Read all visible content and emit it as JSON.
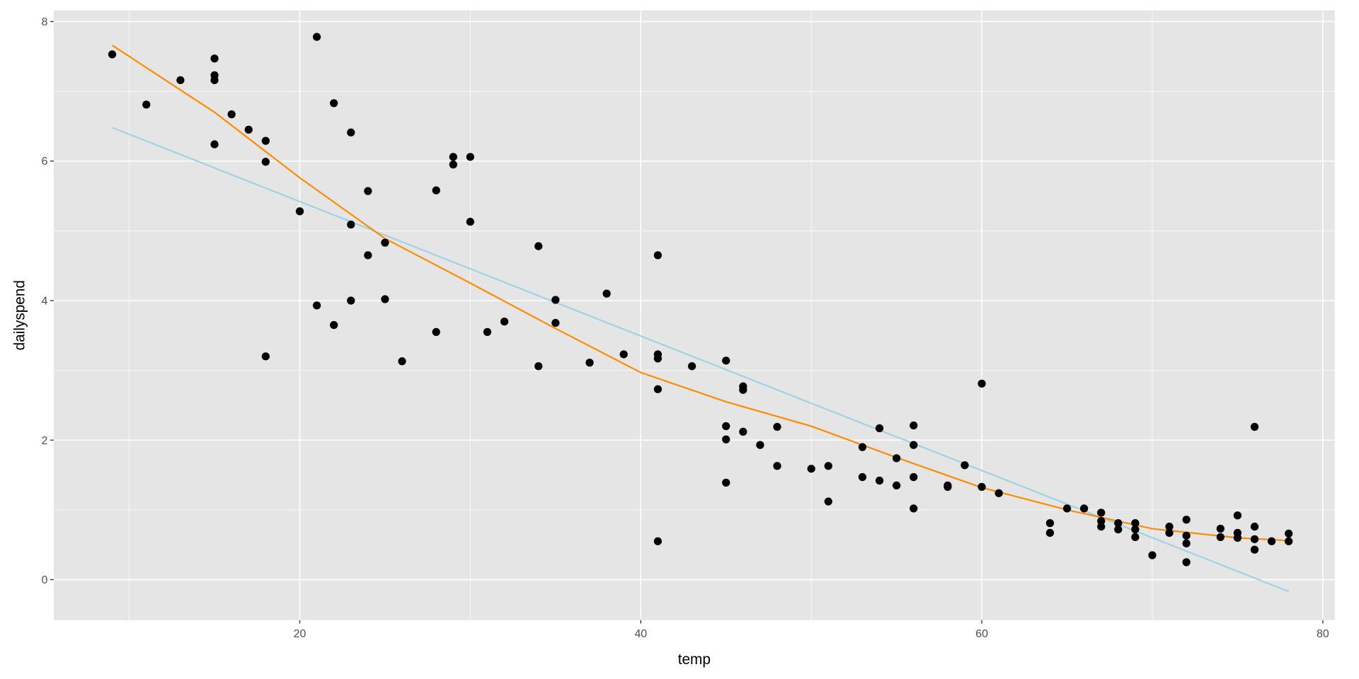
{
  "chart_data": {
    "type": "scatter",
    "title": "",
    "xlabel": "temp",
    "ylabel": "dailyspend",
    "xlim": [
      5.57,
      80.7
    ],
    "ylim": [
      -0.58,
      8.16
    ],
    "x_ticks": [
      20,
      40,
      60,
      80
    ],
    "y_ticks": [
      0,
      2,
      4,
      6,
      8
    ],
    "x_tick_labels": [
      "20",
      "40",
      "60",
      "80"
    ],
    "y_tick_labels": [
      "0",
      "2",
      "4",
      "6",
      "8"
    ],
    "grid": true,
    "legend": "none",
    "colors": {
      "panel": "#e5e5e5",
      "grid": "#ffffff",
      "points": "#000000",
      "linear_fit": "#9fd3e3",
      "loess_fit": "#ff8c00"
    },
    "points": {
      "x": [
        9,
        11,
        13,
        15,
        15,
        15,
        15,
        16,
        17,
        18,
        18,
        18,
        20,
        21,
        21,
        22,
        22,
        23,
        23,
        23,
        24,
        24,
        25,
        25,
        26,
        28,
        28,
        29,
        29,
        30,
        30,
        31,
        32,
        34,
        34,
        35,
        35,
        37,
        38,
        39,
        41,
        41,
        41,
        41,
        41,
        43,
        45,
        45,
        45,
        45,
        46,
        46,
        46,
        47,
        48,
        48,
        50,
        51,
        51,
        53,
        53,
        54,
        54,
        55,
        55,
        56,
        56,
        56,
        56,
        58,
        58,
        59,
        60,
        60,
        61,
        64,
        64,
        65,
        66,
        67,
        67,
        67,
        68,
        68,
        69,
        69,
        69,
        70,
        71,
        71,
        72,
        72,
        72,
        72,
        74,
        74,
        75,
        75,
        75,
        76,
        76,
        76,
        76,
        77,
        78,
        78
      ],
      "y": [
        7.53,
        6.81,
        7.16,
        7.47,
        7.23,
        7.16,
        6.24,
        6.67,
        6.45,
        6.29,
        5.99,
        3.2,
        5.28,
        7.78,
        3.93,
        6.83,
        3.65,
        6.41,
        5.09,
        4.0,
        5.57,
        4.65,
        4.83,
        4.02,
        3.13,
        5.58,
        3.55,
        6.06,
        5.95,
        6.06,
        5.13,
        3.55,
        3.7,
        4.78,
        3.06,
        4.01,
        3.68,
        3.11,
        4.1,
        3.23,
        4.65,
        3.23,
        3.17,
        2.73,
        0.55,
        3.06,
        3.14,
        2.2,
        2.01,
        1.39,
        2.77,
        2.72,
        2.12,
        1.93,
        2.19,
        1.63,
        1.59,
        1.63,
        1.12,
        1.9,
        1.47,
        2.17,
        1.42,
        1.74,
        1.35,
        2.21,
        1.93,
        1.47,
        1.02,
        1.35,
        1.33,
        1.64,
        2.81,
        1.33,
        1.24,
        0.81,
        0.67,
        1.02,
        1.02,
        0.96,
        0.84,
        0.76,
        0.81,
        0.72,
        0.81,
        0.72,
        0.61,
        0.35,
        0.76,
        0.67,
        0.86,
        0.63,
        0.52,
        0.25,
        0.73,
        0.61,
        0.92,
        0.67,
        0.6,
        2.19,
        0.76,
        0.58,
        0.43,
        0.55,
        0.66,
        0.55
      ]
    },
    "series": [
      {
        "name": "linear fit",
        "x": [
          9,
          78
        ],
        "y": [
          6.48,
          -0.17
        ]
      },
      {
        "name": "loess fit",
        "x": [
          9,
          15,
          20,
          25,
          30,
          35,
          40,
          45,
          50,
          55,
          60,
          65,
          70,
          75,
          78
        ],
        "y": [
          7.66,
          6.7,
          5.76,
          4.89,
          4.25,
          3.6,
          2.97,
          2.55,
          2.2,
          1.75,
          1.32,
          1.0,
          0.73,
          0.6,
          0.56
        ]
      }
    ]
  }
}
